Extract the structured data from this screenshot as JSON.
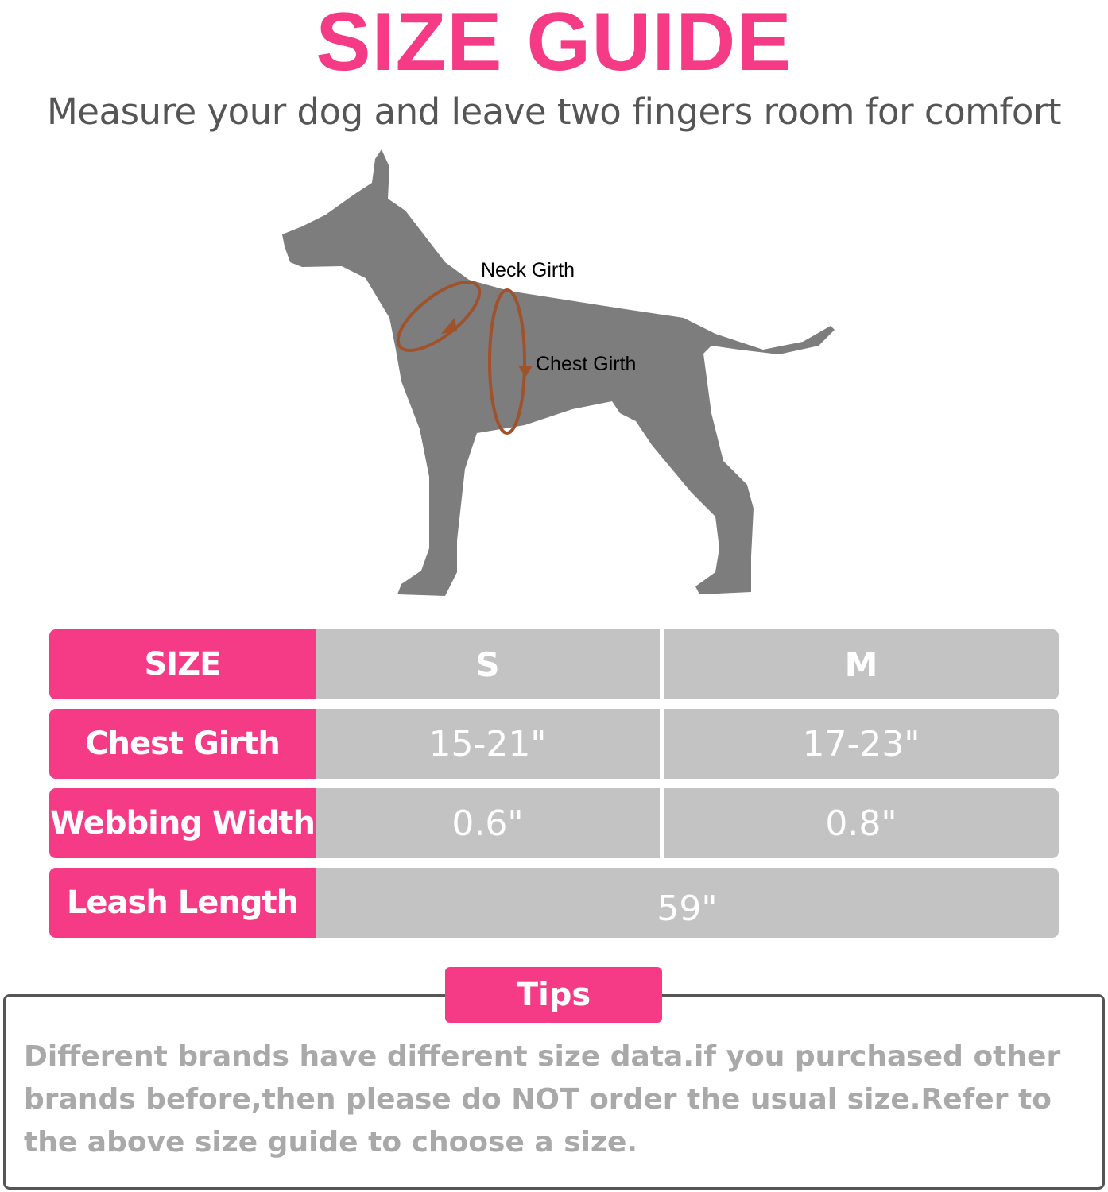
{
  "title": "SIZE GUIDE",
  "subtitle": "Measure your dog and leave two fingers room for comfort",
  "diagram": {
    "neck_label": "Neck Girth",
    "chest_label": "Chest Girth"
  },
  "table": {
    "header": {
      "label": "SIZE",
      "s": "S",
      "m": "M"
    },
    "rows": [
      {
        "label": "Chest Girth",
        "s": "15-21\"",
        "m": "17-23\""
      },
      {
        "label": "Webbing Width",
        "s": "0.6\"",
        "m": "0.8\""
      },
      {
        "label": "Leash Length",
        "all": "59\""
      }
    ]
  },
  "tips": {
    "label": "Tips",
    "text": "Different brands have different size data.if you purchased other brands before,then please do NOT order the usual size.Refer to the above size guide to choose a size."
  },
  "colors": {
    "accent": "#f53b86",
    "cell": "#c4c3c4",
    "dog": "#7d7d7d",
    "measure": "#a0522d"
  }
}
